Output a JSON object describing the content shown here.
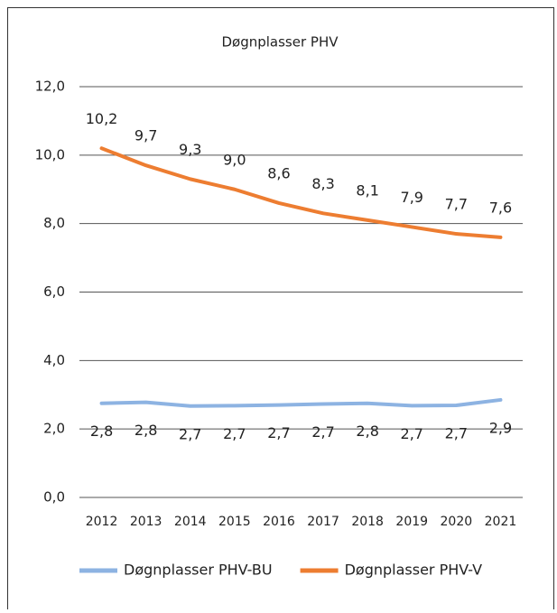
{
  "chart_data": {
    "type": "line",
    "title": "Døgnplasser PHV",
    "categories": [
      "2012",
      "2013",
      "2014",
      "2015",
      "2016",
      "2017",
      "2018",
      "2019",
      "2020",
      "2021"
    ],
    "series": [
      {
        "name": "Døgnplasser PHV-BU",
        "color": "#8db3e2",
        "values": [
          2.75,
          2.78,
          2.67,
          2.68,
          2.7,
          2.73,
          2.75,
          2.68,
          2.69,
          2.85
        ],
        "value_labels": [
          "2,8",
          "2,8",
          "2,7",
          "2,7",
          "2,7",
          "2,7",
          "2,8",
          "2,7",
          "2,7",
          "2,9"
        ]
      },
      {
        "name": "Døgnplasser PHV-V",
        "color": "#ed7d31",
        "values": [
          10.2,
          9.7,
          9.3,
          9.0,
          8.6,
          8.3,
          8.1,
          7.9,
          7.7,
          7.6
        ],
        "value_labels": [
          "10,2",
          "9,7",
          "9,3",
          "9,0",
          "8,6",
          "8,3",
          "8,1",
          "7,9",
          "7,7",
          "7,6"
        ]
      }
    ],
    "ylim": [
      0,
      12
    ],
    "yticks": [
      {
        "value": 0,
        "label": "0,0"
      },
      {
        "value": 2,
        "label": "2,0"
      },
      {
        "value": 4,
        "label": "4,0"
      },
      {
        "value": 6,
        "label": "6,0"
      },
      {
        "value": 8,
        "label": "8,0"
      },
      {
        "value": 10,
        "label": "10,0"
      },
      {
        "value": 12,
        "label": "12,0"
      }
    ],
    "grid": true,
    "legend": "bottom"
  }
}
